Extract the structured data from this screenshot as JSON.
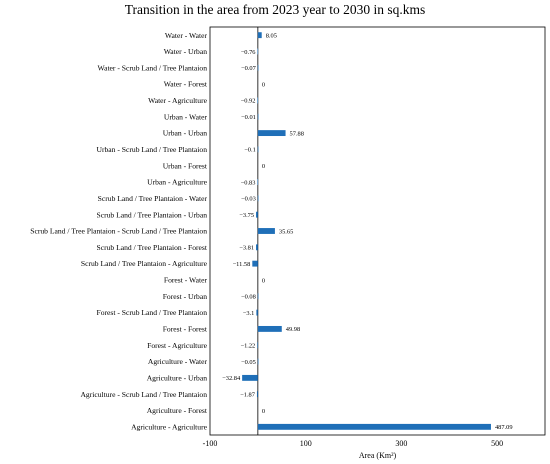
{
  "chart_data": {
    "type": "bar",
    "orientation": "horizontal",
    "title": "Transition in the area from 2023 year to 2030 in sq.kms",
    "xlabel": "Area (Km²)",
    "ylabel": "",
    "xlim": [
      -100,
      600
    ],
    "xticks": [
      -100,
      100,
      300,
      500
    ],
    "xtick_labels": [
      "-100",
      "100",
      "300",
      "500"
    ],
    "grid": false,
    "bar_color": "#1f6fb8",
    "categories": [
      "Water - Water",
      "Water - Urban",
      "Water - Scrub Land / Tree Plantaion",
      "Water - Forest",
      "Water - Agriculture",
      "Urban - Water",
      "Urban - Urban",
      "Urban - Scrub Land / Tree Plantaion",
      "Urban - Forest",
      "Urban - Agriculture",
      "Scrub Land / Tree Plantaion - Water",
      "Scrub Land / Tree Plantaion - Urban",
      "Scrub Land / Tree Plantaion - Scrub Land / Tree Plantaion",
      "Scrub Land / Tree Plantaion - Forest",
      "Scrub Land / Tree Plantaion - Agriculture",
      "Forest - Water",
      "Forest - Urban",
      "Forest - Scrub Land / Tree Plantaion",
      "Forest - Forest",
      "Forest - Agriculture",
      "Agriculture - Water",
      "Agriculture - Urban",
      "Agriculture - Scrub Land / Tree Plantaion",
      "Agriculture - Forest",
      "Agriculture - Agriculture"
    ],
    "values": [
      8.05,
      -0.76,
      -0.07,
      0,
      -0.92,
      -0.01,
      57.88,
      -0.1,
      0,
      -0.83,
      -0.03,
      -3.75,
      35.65,
      -3.81,
      -11.58,
      0,
      -0.08,
      -3.1,
      49.98,
      -1.22,
      -0.05,
      -32.84,
      -1.87,
      0,
      487.09
    ],
    "value_labels": [
      "8.05",
      "−0.76",
      "−0.07",
      "0",
      "−0.92",
      "−0.01",
      "57.88",
      "−0.1",
      "0",
      "−0.83",
      "−0.03",
      "−3.75",
      "35.65",
      "−3.81",
      "−11.58",
      "0",
      "−0.08",
      "−3.1",
      "49.98",
      "−1.22",
      "−0.05",
      "−32.84",
      "−1.87",
      "0",
      "487.09"
    ]
  }
}
